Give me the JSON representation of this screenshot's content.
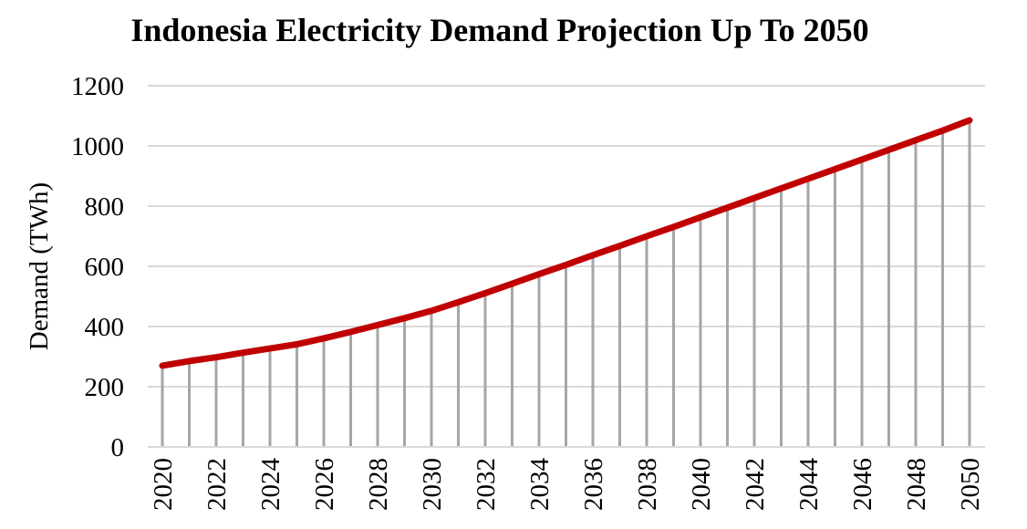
{
  "chart_data": {
    "type": "line",
    "title": "Indonesia Electricity Demand Projection Up To 2050",
    "xlabel": "",
    "ylabel": "Demand (TWh)",
    "ylim": [
      0,
      1200
    ],
    "yticks": [
      0,
      200,
      400,
      600,
      800,
      1000,
      1200
    ],
    "x": [
      2020,
      2021,
      2022,
      2023,
      2024,
      2025,
      2026,
      2027,
      2028,
      2029,
      2030,
      2031,
      2032,
      2033,
      2034,
      2035,
      2036,
      2037,
      2038,
      2039,
      2040,
      2041,
      2042,
      2043,
      2044,
      2045,
      2046,
      2047,
      2048,
      2049,
      2050
    ],
    "xtick_labels": [
      "2020",
      "2022",
      "2024",
      "2026",
      "2028",
      "2030",
      "2032",
      "2034",
      "2036",
      "2038",
      "2040",
      "2042",
      "2044",
      "2046",
      "2048",
      "2050"
    ],
    "series": [
      {
        "values": [
          270,
          285,
          298,
          313,
          327,
          341,
          361,
          382,
          405,
          428,
          452,
          481,
          511,
          542,
          574,
          605,
          637,
          668,
          700,
          731,
          763,
          795,
          827,
          859,
          891,
          923,
          955,
          987,
          1019,
          1051,
          1085
        ],
        "color": "#c00000"
      }
    ],
    "drop_line_color": "#a6a6a6",
    "grid": true,
    "grid_color": "#d9d9d9",
    "legend": "none"
  }
}
